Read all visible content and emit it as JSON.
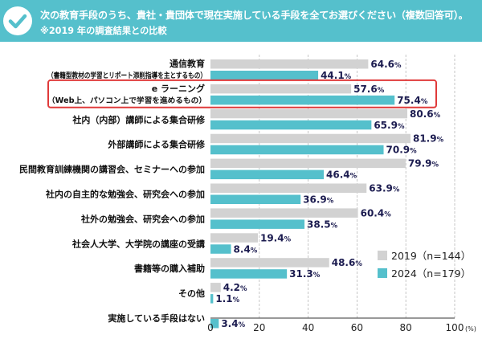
{
  "header": {
    "question": "次の教育手段のうち、貴社・貴団体で現在実施している手段を全てお選びください（複数回答可）。",
    "note": "※2019 年の調査結果との比較"
  },
  "colors": {
    "header_bg": "#55c0cc",
    "series_2019": "#d2d2d2",
    "series_2024": "#55c0cc",
    "highlight_box": "#e03a3a",
    "label_text": "#1c1c50"
  },
  "icons": {
    "header": "checkmark-icon"
  },
  "chart_data": {
    "type": "bar",
    "orientation": "horizontal",
    "categories": [
      {
        "label": "通信教育",
        "sub": "（書籍型教材の学習とリポート添削指導を主とするもの）"
      },
      {
        "label": "e ラーニング",
        "sub": "（Web上、パソコン上で学習を進めるもの）",
        "highlight": true
      },
      {
        "label": "社内（内部）講師による集合研修"
      },
      {
        "label": "外部講師による集合研修"
      },
      {
        "label": "民間教育訓練機関の講習会、セミナーへの参加"
      },
      {
        "label": "社内の自主的な勉強会、研究会への参加"
      },
      {
        "label": "社外の勉強会、研究会への参加"
      },
      {
        "label": "社会人大学、大学院の講座の受講"
      },
      {
        "label": "書籍等の購入補助"
      },
      {
        "label": "その他"
      },
      {
        "label": "実施している手段はない"
      }
    ],
    "series": [
      {
        "name": "2019（n=144）",
        "values": [
          64.6,
          57.6,
          80.6,
          81.9,
          79.9,
          63.9,
          60.4,
          19.4,
          48.6,
          4.2,
          null
        ]
      },
      {
        "name": "2024（n=179）",
        "values": [
          44.1,
          75.4,
          65.9,
          70.9,
          46.4,
          36.9,
          38.5,
          8.4,
          31.3,
          1.1,
          3.4
        ]
      }
    ],
    "percent_sign": "%",
    "x_ticks": [
      "0",
      "20",
      "40",
      "60",
      "80",
      "100"
    ],
    "x_unit": "(%)",
    "xlim": [
      0,
      100
    ],
    "grid": "dashed-vertical",
    "legend_position": "bottom-right"
  }
}
